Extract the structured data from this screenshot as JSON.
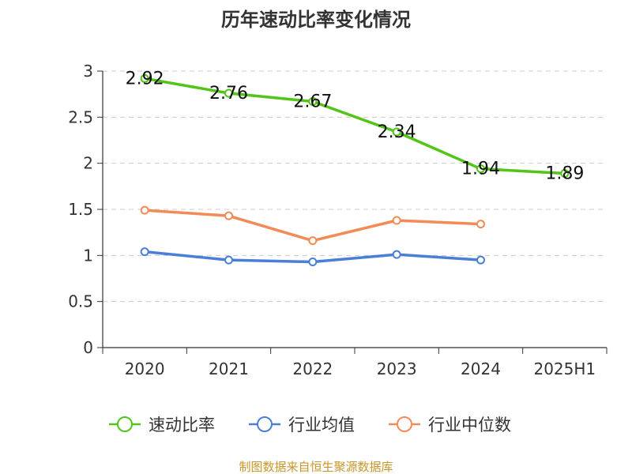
{
  "chart_data": {
    "type": "line",
    "title": "历年速动比率变化情况",
    "categories": [
      "2020",
      "2021",
      "2022",
      "2023",
      "2024",
      "2025H1"
    ],
    "y_ticks": [
      "0",
      "0.5",
      "1",
      "1.5",
      "2",
      "2.5",
      "3"
    ],
    "ylim": [
      0,
      3
    ],
    "grid": true,
    "legend_position": "bottom",
    "series": [
      {
        "name": "速动比率",
        "values": [
          2.92,
          2.76,
          2.67,
          2.34,
          1.94,
          1.89
        ],
        "labels": [
          "2.92",
          "2.76",
          "2.67",
          "2.34",
          "1.94",
          "1.89"
        ],
        "color": "#52c41a"
      },
      {
        "name": "行业均值",
        "values": [
          1.04,
          0.95,
          0.93,
          1.01,
          0.95,
          null
        ],
        "color": "#4a7fd8"
      },
      {
        "name": "行业中位数",
        "values": [
          1.49,
          1.43,
          1.16,
          1.38,
          1.34,
          null
        ],
        "color": "#f28b55"
      }
    ]
  },
  "footer": {
    "source": "制图数据来自恒生聚源数据库",
    "color": "#c8962a"
  }
}
